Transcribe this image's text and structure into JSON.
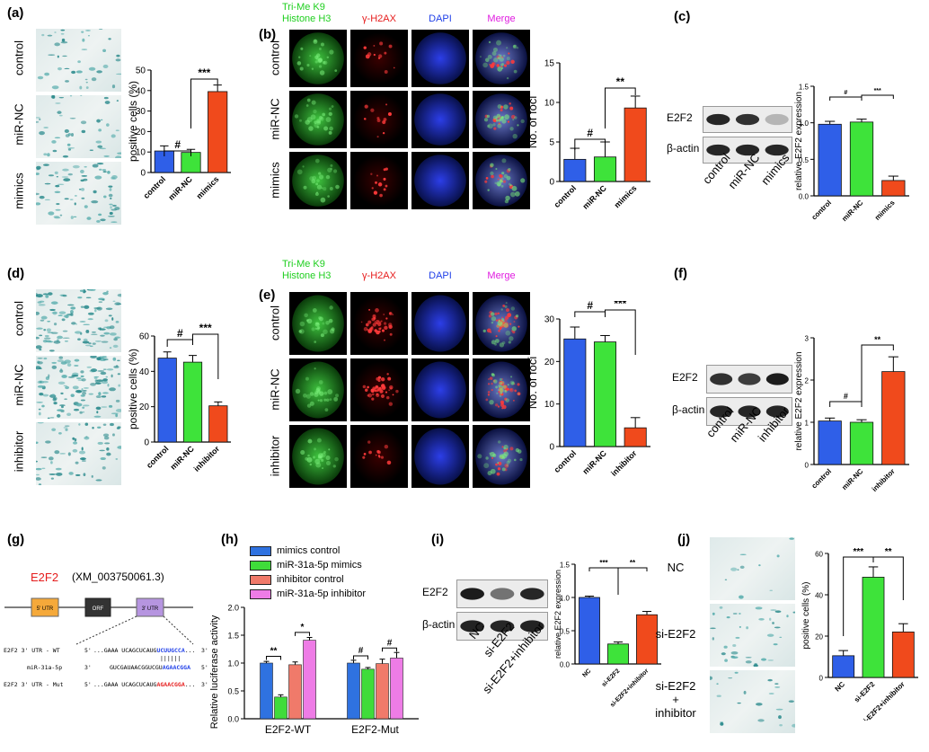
{
  "panels": {
    "a": {
      "letter": "(a)",
      "rows": [
        "control",
        "miR-NC",
        "mimics"
      ]
    },
    "b": {
      "letter": "(b)",
      "rows": [
        "control",
        "miR-NC",
        "mimics"
      ],
      "cols": [
        "Tri-Me K9\nHistone H3",
        "γ-H2AX",
        "DAPI",
        "Merge"
      ]
    },
    "c": {
      "letter": "(c)",
      "blot_rows": [
        "E2F2",
        "β-actin"
      ],
      "lanes": [
        "control",
        "miR-NC",
        "mimics"
      ]
    },
    "d": {
      "letter": "(d)",
      "rows": [
        "control",
        "miR-NC",
        "inhibitor"
      ]
    },
    "e": {
      "letter": "(e)",
      "rows": [
        "control",
        "miR-NC",
        "inhibitor"
      ],
      "cols": [
        "Tri-Me K9\nHistone H3",
        "γ-H2AX",
        "DAPI",
        "Merge"
      ]
    },
    "f": {
      "letter": "(f)",
      "blot_rows": [
        "E2F2",
        "β-actin"
      ],
      "lanes": [
        "control",
        "miR-NC",
        "inhibitor"
      ]
    },
    "g": {
      "letter": "(g)",
      "gene": "E2F2",
      "accession": "(XM_003750061.3)",
      "boxes": [
        "5' UTR",
        "ORF",
        "3' UTR"
      ],
      "seq_rows": [
        {
          "label": "E2F2   3' UTR - WT",
          "p5": "5'",
          "seq_a": "...GAAA UCAGCUCAUG",
          "seq_b": "UCUUGCCA",
          "seq_c": "...",
          "p3": "3'"
        },
        {
          "label": "miR-31a-5p",
          "p5": "3'",
          "seq_a": "GUCGAUAACGGUCGU",
          "seq_b": "AGAACGGA",
          "seq_c": "",
          "p3": "5'"
        },
        {
          "label": "E2F2   3' UTR - Mut",
          "p5": "5'",
          "seq_a": "...GAAA UCAGCUCAUG",
          "seq_b": "AGAACGGA",
          "seq_c": "...",
          "p3": "3'"
        }
      ]
    },
    "h": {
      "letter": "(h)"
    },
    "i": {
      "letter": "(i)",
      "blot_rows": [
        "E2F2",
        "β-actin"
      ],
      "lanes": [
        "NC",
        "si-E2F2",
        "si-E2F2+inhibitor"
      ]
    },
    "j": {
      "letter": "(j)",
      "rows": [
        "NC",
        "si-E2F2",
        "si-E2F2\n+\ninhibitor"
      ]
    }
  },
  "colors": {
    "blue": "#2f5fe8",
    "green": "#3ee33a",
    "red": "#f04a1c",
    "pink": "#ee7ce6",
    "salmon": "#f07a6a",
    "hblue": "#2f72e0",
    "hgreen": "#3fdc3a"
  },
  "chart_data": [
    {
      "id": "a",
      "type": "bar",
      "categories": [
        "control",
        "miR-NC",
        "mimics"
      ],
      "values": [
        10.5,
        9.8,
        39.5
      ],
      "errors": [
        2.5,
        1.5,
        3.2
      ],
      "ylabel": "positive cells (%)",
      "ylim": [
        0,
        50
      ],
      "yticks": [
        0,
        10,
        20,
        30,
        40,
        50
      ],
      "annotations": [
        {
          "from": 0,
          "to": 1,
          "text": "#"
        },
        {
          "from": 1,
          "to": 2,
          "text": "***"
        }
      ]
    },
    {
      "id": "b",
      "type": "bar",
      "categories": [
        "control",
        "miR-NC",
        "mimics"
      ],
      "values": [
        2.8,
        3.1,
        9.3
      ],
      "errors": [
        1.4,
        1.9,
        1.5
      ],
      "ylabel": "No. of foci",
      "ylim": [
        0,
        15
      ],
      "yticks": [
        0,
        5,
        10,
        15
      ],
      "annotations": [
        {
          "from": 0,
          "to": 1,
          "text": "#"
        },
        {
          "from": 1,
          "to": 2,
          "text": "**"
        }
      ]
    },
    {
      "id": "c",
      "type": "bar",
      "categories": [
        "control",
        "miR-NC",
        "mimics"
      ],
      "values": [
        0.98,
        1.01,
        0.21
      ],
      "errors": [
        0.04,
        0.04,
        0.06
      ],
      "ylabel": "relative E2F2 expression",
      "ylim": [
        0,
        1.5
      ],
      "yticks": [
        0.0,
        0.5,
        1.0,
        1.5
      ],
      "annotations": [
        {
          "from": 0,
          "to": 1,
          "text": "#"
        },
        {
          "from": 1,
          "to": 2,
          "text": "***"
        }
      ]
    },
    {
      "id": "d",
      "type": "bar",
      "categories": [
        "control",
        "miR-NC",
        "inhibitor"
      ],
      "values": [
        47.5,
        45.2,
        20.5
      ],
      "errors": [
        3.5,
        3.8,
        2.2
      ],
      "ylabel": "positive cells (%)",
      "ylim": [
        0,
        60
      ],
      "yticks": [
        0,
        20,
        40,
        60
      ],
      "annotations": [
        {
          "from": 0,
          "to": 1,
          "text": "#"
        },
        {
          "from": 1,
          "to": 2,
          "text": "***"
        }
      ]
    },
    {
      "id": "e",
      "type": "bar",
      "categories": [
        "control",
        "miR-NC",
        "inhibitor"
      ],
      "values": [
        25.3,
        24.6,
        4.4
      ],
      "errors": [
        2.8,
        1.5,
        2.4
      ],
      "ylabel": "No. of foci",
      "ylim": [
        0,
        30
      ],
      "yticks": [
        0,
        10,
        20,
        30
      ],
      "annotations": [
        {
          "from": 0,
          "to": 1,
          "text": "#"
        },
        {
          "from": 1,
          "to": 2,
          "text": "***"
        }
      ]
    },
    {
      "id": "f",
      "type": "bar",
      "categories": [
        "control",
        "miR-NC",
        "inhibitor"
      ],
      "values": [
        1.03,
        1.0,
        2.2
      ],
      "errors": [
        0.07,
        0.06,
        0.35
      ],
      "ylabel": "relative E2F2 expression",
      "ylim": [
        0,
        3
      ],
      "yticks": [
        0,
        1,
        2,
        3
      ],
      "annotations": [
        {
          "from": 0,
          "to": 1,
          "text": "#"
        },
        {
          "from": 1,
          "to": 2,
          "text": "**"
        }
      ]
    },
    {
      "id": "h",
      "type": "bar",
      "groups": [
        "E2F2-WT",
        "E2F2-Mut"
      ],
      "series": [
        {
          "name": "mimics control",
          "values": [
            1.0,
            1.0
          ],
          "errors": [
            0.03,
            0.05
          ]
        },
        {
          "name": "miR-31a-5p mimics",
          "values": [
            0.39,
            0.89
          ],
          "errors": [
            0.04,
            0.03
          ]
        },
        {
          "name": "inhibitor control",
          "values": [
            0.97,
            0.99
          ],
          "errors": [
            0.05,
            0.08
          ]
        },
        {
          "name": "miR-31a-5p inhibitor",
          "values": [
            1.41,
            1.09
          ],
          "errors": [
            0.05,
            0.1
          ]
        }
      ],
      "ylabel": "Relative luciferase activity",
      "ylim": [
        0,
        2.0
      ],
      "yticks": [
        0.0,
        0.5,
        1.0,
        1.5,
        2.0
      ],
      "annotations": [
        {
          "group": 0,
          "from": 0,
          "to": 1,
          "text": "**"
        },
        {
          "group": 0,
          "from": 2,
          "to": 3,
          "text": "*"
        },
        {
          "group": 1,
          "from": 0,
          "to": 1,
          "text": "#"
        },
        {
          "group": 1,
          "from": 2,
          "to": 3,
          "text": "#"
        }
      ]
    },
    {
      "id": "i",
      "type": "bar",
      "categories": [
        "NC",
        "si-E2F2",
        "si-E2F2+inhibitor"
      ],
      "values": [
        1.0,
        0.3,
        0.74
      ],
      "errors": [
        0.02,
        0.03,
        0.05
      ],
      "ylabel": "relative E2F2 expression",
      "ylim": [
        0,
        1.5
      ],
      "yticks": [
        0.0,
        0.5,
        1.0,
        1.5
      ],
      "annotations": [
        {
          "from": 0,
          "to": 1,
          "text": "***"
        },
        {
          "from": 1,
          "to": 2,
          "text": "**"
        }
      ]
    },
    {
      "id": "j",
      "type": "bar",
      "categories": [
        "NC",
        "si-E2F2",
        "si-E2F2+inhibitor"
      ],
      "values": [
        10.5,
        48.5,
        22.0
      ],
      "errors": [
        2.5,
        5.0,
        4.0
      ],
      "ylabel": "positive cells (%)",
      "ylim": [
        0,
        60
      ],
      "yticks": [
        0,
        20,
        40,
        60
      ],
      "annotations": [
        {
          "from": 0,
          "to": 1,
          "text": "***"
        },
        {
          "from": 1,
          "to": 2,
          "text": "**"
        }
      ]
    }
  ]
}
